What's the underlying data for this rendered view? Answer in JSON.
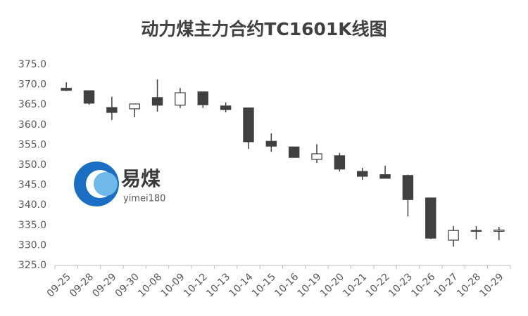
{
  "chart_data": {
    "type": "candlestick",
    "title": "动力煤主力合约TC1601K线图",
    "annotations": [
      "易煤",
      "yimei180"
    ],
    "categories": [
      "09-25",
      "09-28",
      "09-29",
      "09-30",
      "10-08",
      "10-09",
      "10-12",
      "10-13",
      "10-14",
      "10-15",
      "10-16",
      "10-19",
      "10-20",
      "10-21",
      "10-22",
      "10-23",
      "10-26",
      "10-27",
      "10-28",
      "10-29"
    ],
    "open": [
      369.1,
      368.5,
      364.3,
      364.0,
      366.8,
      364.9,
      368.2,
      364.7,
      364.2,
      355.9,
      354.5,
      351.4,
      352.3,
      348.4,
      347.6,
      347.4,
      341.8,
      331.3,
      333.5,
      333.5
    ],
    "high": [
      370.6,
      368.6,
      367.0,
      365.3,
      371.3,
      369.2,
      368.3,
      365.6,
      364.2,
      357.9,
      354.5,
      355.2,
      353.0,
      349.3,
      349.8,
      347.6,
      341.8,
      334.8,
      334.8,
      334.6
    ],
    "low": [
      368.4,
      365.0,
      361.2,
      361.9,
      363.3,
      364.2,
      364.2,
      363.1,
      354.0,
      353.3,
      351.9,
      350.5,
      348.4,
      346.3,
      346.7,
      337.2,
      331.6,
      329.7,
      331.5,
      331.3
    ],
    "close": [
      368.6,
      365.4,
      363.1,
      365.2,
      364.9,
      368.0,
      365.0,
      363.8,
      355.8,
      354.7,
      351.9,
      352.8,
      349.0,
      347.2,
      346.7,
      341.4,
      331.8,
      333.7,
      333.7,
      333.8
    ],
    "up_color": "#ffffff",
    "down_color": "#404040",
    "ylim": [
      325,
      375
    ],
    "yticks": [
      {
        "value": 325,
        "label": "325.0"
      },
      {
        "value": 330,
        "label": "330.0"
      },
      {
        "value": 335,
        "label": "335.0"
      },
      {
        "value": 340,
        "label": "340.0"
      },
      {
        "value": 345,
        "label": "345.0"
      },
      {
        "value": 350,
        "label": "350.0"
      },
      {
        "value": 355,
        "label": "355.0"
      },
      {
        "value": 360,
        "label": "360.0"
      },
      {
        "value": 365,
        "label": "365.0"
      },
      {
        "value": 370,
        "label": "370.0"
      },
      {
        "value": 375,
        "label": "375.0"
      }
    ],
    "grid": false
  }
}
